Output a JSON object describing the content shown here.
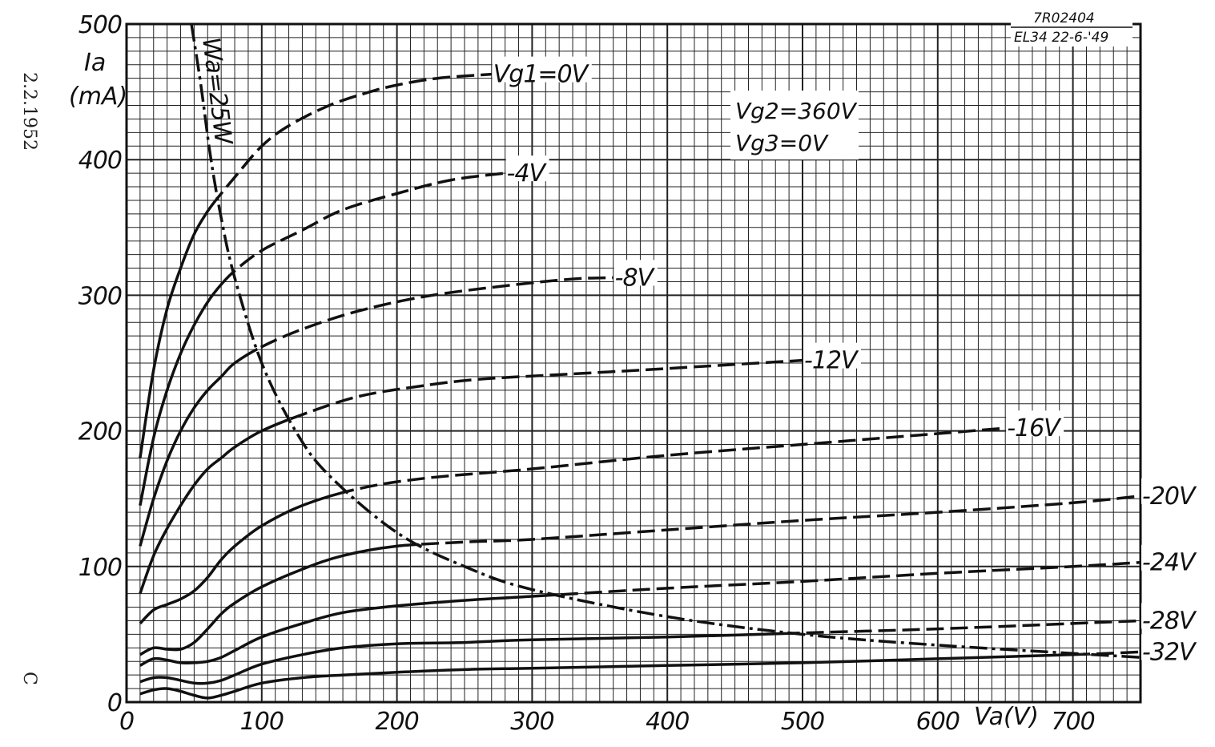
{
  "margin": {
    "date": "2.2.1952",
    "mark": "C"
  },
  "stamp": {
    "code": "7R02404",
    "ref": "EL34 22-6-'49"
  },
  "params": {
    "vg2": "Vg2=360V",
    "vg3": "Vg3=0V"
  },
  "power_label": "Wa=25W",
  "chart_data": {
    "type": "line",
    "xlabel": "Va(V)",
    "ylabel": "Ia",
    "ylabel_unit": "(mA)",
    "xlim": [
      0,
      750
    ],
    "ylim": [
      0,
      500
    ],
    "x_ticks": [
      0,
      100,
      200,
      300,
      400,
      500,
      600,
      700
    ],
    "y_ticks": [
      0,
      100,
      200,
      300,
      400,
      500
    ],
    "grid": true,
    "series": [
      {
        "name": "Vg1=0V",
        "x": [
          10,
          20,
          30,
          40,
          50,
          60,
          70,
          80,
          100,
          120,
          150,
          180,
          200,
          230,
          270
        ],
        "y": [
          180,
          245,
          290,
          320,
          345,
          362,
          375,
          387,
          410,
          425,
          440,
          450,
          455,
          460,
          463
        ]
      },
      {
        "name": "-4V",
        "x": [
          10,
          20,
          30,
          40,
          50,
          60,
          70,
          80,
          100,
          130,
          160,
          200,
          240,
          280
        ],
        "y": [
          145,
          195,
          230,
          257,
          278,
          295,
          308,
          318,
          333,
          348,
          363,
          375,
          385,
          390
        ]
      },
      {
        "name": "-8V",
        "x": [
          10,
          20,
          30,
          40,
          50,
          60,
          70,
          80,
          100,
          130,
          170,
          220,
          280,
          330,
          360
        ],
        "y": [
          115,
          150,
          178,
          200,
          217,
          230,
          240,
          250,
          262,
          275,
          288,
          299,
          307,
          312,
          313
        ]
      },
      {
        "name": "-12V",
        "x": [
          10,
          20,
          30,
          40,
          50,
          60,
          70,
          80,
          100,
          130,
          170,
          210,
          260,
          330,
          400,
          500
        ],
        "y": [
          80,
          108,
          128,
          145,
          160,
          172,
          180,
          188,
          200,
          212,
          225,
          232,
          238,
          242,
          246,
          252
        ]
      },
      {
        "name": "-16V",
        "x": [
          10,
          20,
          30,
          40,
          50,
          60,
          70,
          80,
          100,
          130,
          170,
          220,
          300,
          400,
          500,
          600,
          650
        ],
        "y": [
          58,
          68,
          72,
          76,
          82,
          92,
          105,
          115,
          130,
          145,
          157,
          165,
          172,
          182,
          190,
          198,
          202
        ]
      },
      {
        "name": "-20V",
        "x": [
          10,
          20,
          30,
          40,
          50,
          60,
          70,
          80,
          100,
          130,
          160,
          200,
          250,
          300,
          400,
          500,
          600,
          700,
          750
        ],
        "y": [
          35,
          40,
          39,
          39,
          44,
          54,
          65,
          73,
          85,
          98,
          108,
          115,
          118,
          120,
          127,
          134,
          140,
          147,
          152
        ]
      },
      {
        "name": "-24V",
        "x": [
          10,
          20,
          30,
          40,
          50,
          60,
          70,
          80,
          100,
          130,
          160,
          200,
          250,
          300,
          400,
          500,
          600,
          700,
          750
        ],
        "y": [
          27,
          32,
          31,
          29,
          29,
          30,
          33,
          38,
          48,
          58,
          66,
          71,
          75,
          78,
          84,
          89,
          95,
          100,
          103
        ]
      },
      {
        "name": "-28V",
        "x": [
          10,
          20,
          30,
          40,
          50,
          60,
          70,
          80,
          100,
          130,
          160,
          200,
          250,
          300,
          400,
          500,
          600,
          700,
          750
        ],
        "y": [
          15,
          18,
          18,
          16,
          14,
          14,
          16,
          20,
          28,
          35,
          40,
          43,
          44,
          46,
          48,
          51,
          54,
          58,
          60
        ]
      },
      {
        "name": "-32V",
        "x": [
          10,
          20,
          30,
          40,
          50,
          60,
          70,
          80,
          100,
          130,
          160,
          200,
          250,
          300,
          400,
          500,
          600,
          700,
          750
        ],
        "y": [
          6,
          9,
          10,
          8,
          5,
          3,
          5,
          8,
          14,
          18,
          20,
          22,
          24,
          25,
          27,
          29,
          32,
          35,
          37
        ]
      },
      {
        "name": "Wa=25W",
        "x": [
          48,
          55,
          62,
          70,
          80,
          100,
          125,
          150,
          200,
          250,
          300,
          400,
          500,
          600,
          750
        ],
        "y": [
          500,
          455,
          403,
          357,
          313,
          250,
          200,
          167,
          125,
          100,
          83,
          63,
          50,
          42,
          33
        ]
      }
    ]
  }
}
